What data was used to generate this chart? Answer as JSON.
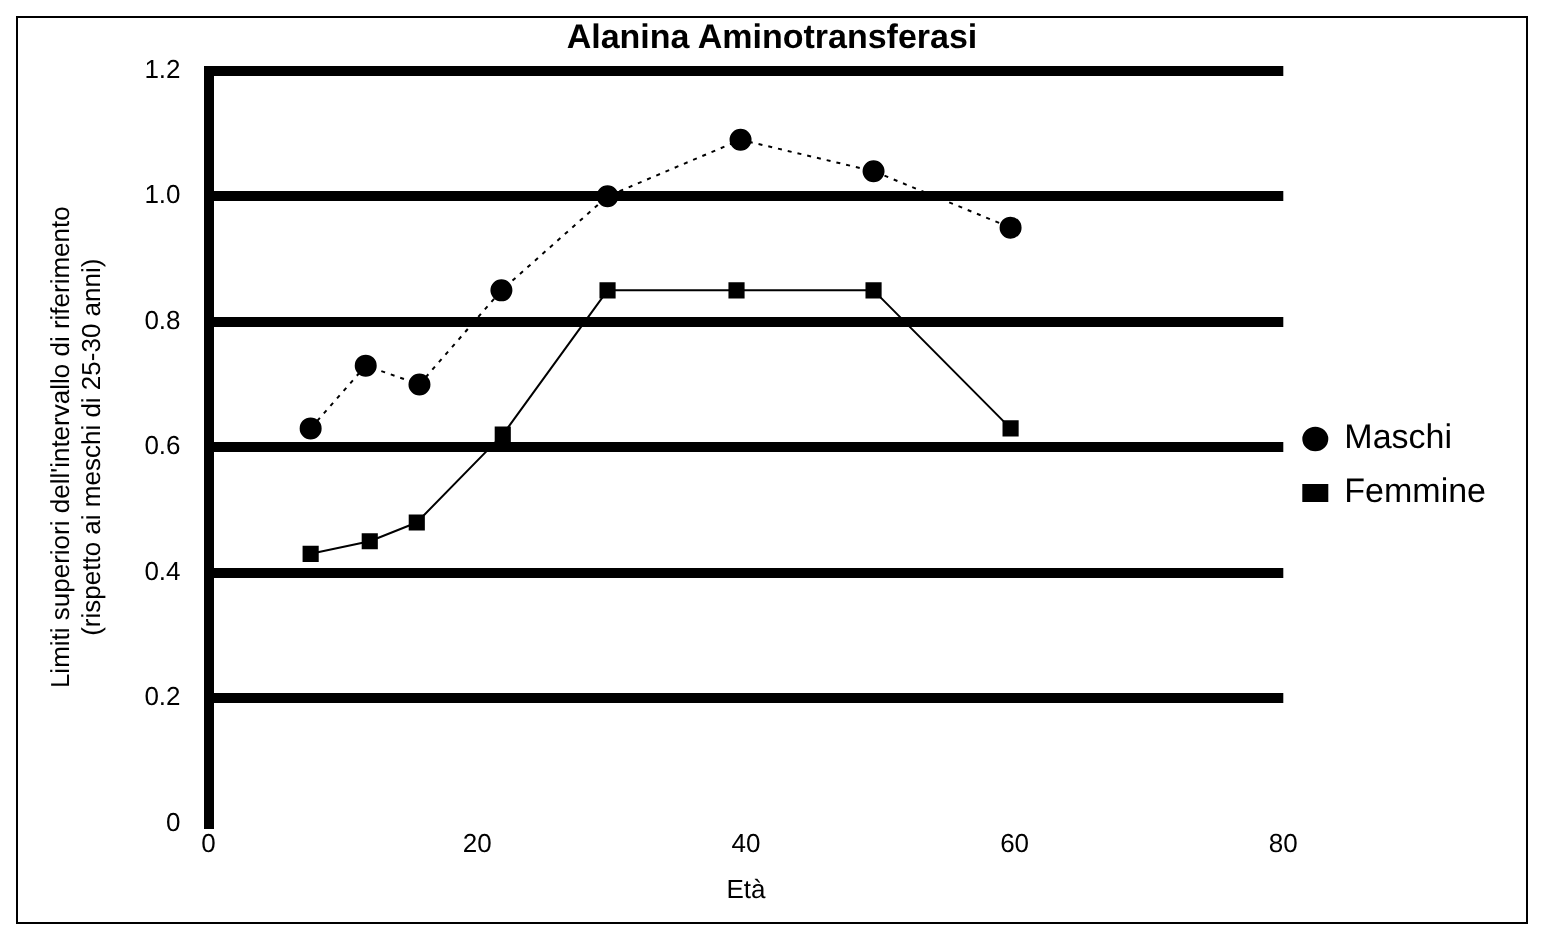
{
  "chart_data": {
    "type": "line",
    "title": "Alanina Aminotransferasi",
    "xlabel": "Età",
    "ylabel": "Limiti superiori dell'intervallo di riferimento\n(rispetto ai meschi di 25-30 anni)",
    "xlim": [
      0,
      80
    ],
    "xticks": [
      0,
      20,
      40,
      60,
      80
    ],
    "ylim": [
      0,
      1.2
    ],
    "yticks": [
      0,
      0.2,
      0.4,
      0.6,
      0.8,
      {
        "value": 1,
        "label": "1.0"
      },
      1.2
    ],
    "grid": "y",
    "legend": "right",
    "series": [
      {
        "name": "Maschi",
        "color": "#000000",
        "marker": "circle",
        "line_style": "dotted",
        "x": [
          7.6,
          11.7,
          15.7,
          21.8,
          29.7,
          39.6,
          49.5,
          59.7
        ],
        "values": [
          0.63,
          0.73,
          0.7,
          0.85,
          1.0,
          1.09,
          1.04,
          0.95
        ]
      },
      {
        "name": "Femmine",
        "color": "#000000",
        "marker": "square",
        "line_style": "solid",
        "x": [
          7.6,
          12,
          15.5,
          21.9,
          29.7,
          39.3,
          49.5,
          59.7
        ],
        "values": [
          0.43,
          0.45,
          0.48,
          0.62,
          0.85,
          0.85,
          0.85,
          0.63
        ]
      }
    ]
  }
}
